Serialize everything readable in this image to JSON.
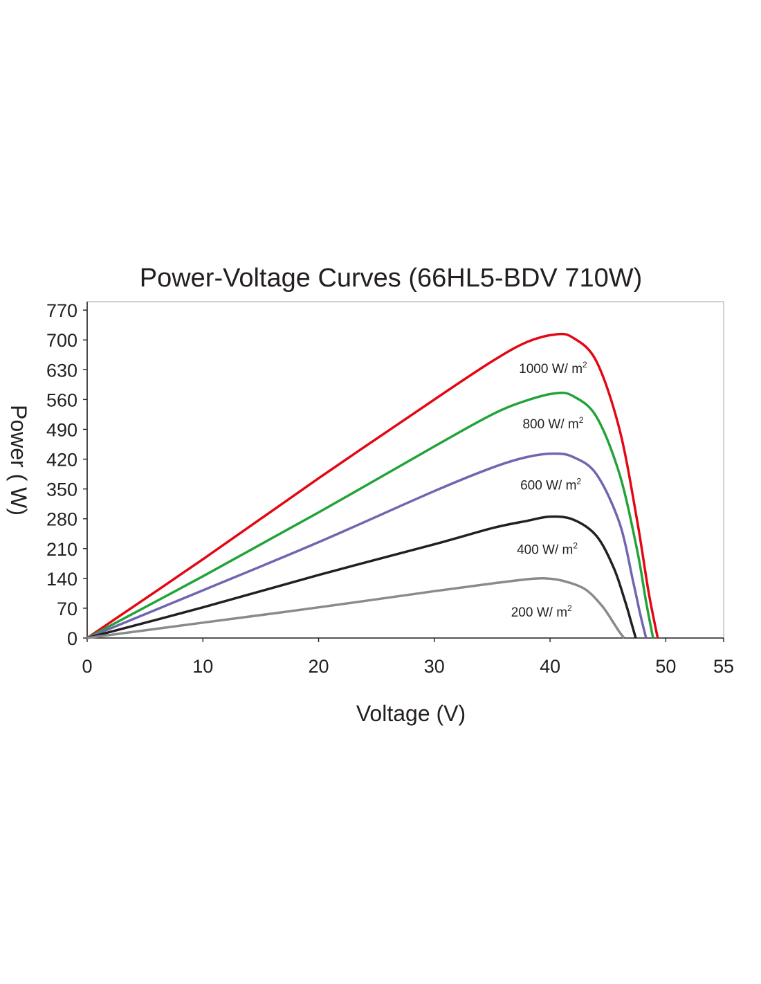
{
  "chart_data": {
    "type": "line",
    "title": "Power-Voltage Curves (66HL5-BDV 710W)",
    "xlabel": "Voltage (V)",
    "ylabel": "Power ( W)",
    "xlim": [
      0,
      55
    ],
    "ylim": [
      0,
      770
    ],
    "xticks": [
      0,
      10,
      20,
      30,
      40,
      50,
      55
    ],
    "yticks": [
      0,
      70,
      140,
      210,
      280,
      350,
      420,
      490,
      560,
      630,
      700,
      770
    ],
    "grid": false,
    "legend": "inline labels",
    "series": [
      {
        "name": "1000 W/ m2",
        "label_main": "1000 W/ m",
        "label_sup": "2",
        "color": "#e30613",
        "x": [
          0,
          10,
          20,
          30,
          35,
          38,
          40.5,
          42,
          44,
          46,
          47.5,
          48.5,
          49.3
        ],
        "y": [
          0,
          185,
          375,
          560,
          650,
          695,
          713,
          705,
          650,
          490,
          280,
          110,
          0
        ]
      },
      {
        "name": "800 W/ m2",
        "label_main": "800 W/ m",
        "label_sup": "2",
        "color": "#22a33a",
        "x": [
          0,
          10,
          20,
          30,
          35,
          38,
          40.5,
          42,
          44,
          46,
          47.5,
          48.3,
          48.9
        ],
        "y": [
          0,
          145,
          295,
          450,
          525,
          558,
          575,
          568,
          520,
          385,
          210,
          85,
          0
        ]
      },
      {
        "name": "600 W/ m2",
        "label_main": "600 W/ m",
        "label_sup": "2",
        "color": "#6f66b0",
        "x": [
          0,
          10,
          20,
          30,
          35,
          38,
          40.3,
          42,
          44,
          46,
          47.2,
          47.8,
          48.3
        ],
        "y": [
          0,
          112,
          225,
          345,
          400,
          425,
          433,
          425,
          385,
          270,
          130,
          55,
          0
        ]
      },
      {
        "name": "400 W/ m2",
        "label_main": "400 W/ m",
        "label_sup": "2",
        "color": "#231f20",
        "x": [
          0,
          10,
          20,
          30,
          35,
          38,
          40,
          42,
          44,
          45.5,
          46.5,
          47.0,
          47.4
        ],
        "y": [
          0,
          72,
          148,
          220,
          258,
          275,
          285,
          278,
          240,
          165,
          85,
          38,
          0
        ]
      },
      {
        "name": "200 W/ m2",
        "label_main": "200 W/ m",
        "label_sup": "2",
        "color": "#8a8a8a",
        "x": [
          0,
          10,
          20,
          30,
          35,
          38,
          39.5,
          41,
          43,
          44.5,
          45.5,
          46.0,
          46.4
        ],
        "y": [
          0,
          36,
          72,
          110,
          128,
          138,
          140,
          135,
          115,
          75,
          35,
          14,
          0
        ]
      }
    ]
  }
}
